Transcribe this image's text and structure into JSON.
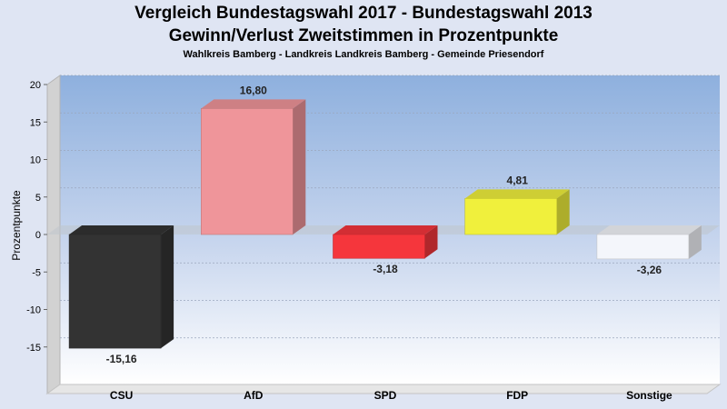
{
  "header": {
    "title": "Vergleich Bundestagswahl 2017 - Bundestagswahl 2013",
    "subtitle": "Gewinn/Verlust Zweitstimmen in Prozentpunkte",
    "region": "Wahlkreis Bamberg - Landkreis Landkreis Bamberg - Gemeinde Priesendorf"
  },
  "chart_data": {
    "type": "bar",
    "title": "Vergleich Bundestagswahl 2017 - Bundestagswahl 2013",
    "subtitle": "Gewinn/Verlust Zweitstimmen in Prozentpunkte",
    "ylabel": "Prozentpunkte",
    "xlabel": "",
    "categories": [
      "CSU",
      "AfD",
      "SPD",
      "FDP",
      "Sonstige"
    ],
    "values": [
      -15.16,
      16.8,
      -3.18,
      4.81,
      -3.26
    ],
    "value_labels": [
      "-15,16",
      "16,80",
      "-3,18",
      "4,81",
      "-3,26"
    ],
    "colors": [
      "#333333",
      "#ef959a",
      "#f5363c",
      "#f0f03c",
      "#f4f6fb"
    ],
    "ylim": [
      -20,
      20
    ],
    "yticks": [
      20,
      15,
      10,
      5,
      0,
      -5,
      -10,
      -15
    ],
    "grid": true,
    "legend": "none",
    "style": "3d"
  }
}
